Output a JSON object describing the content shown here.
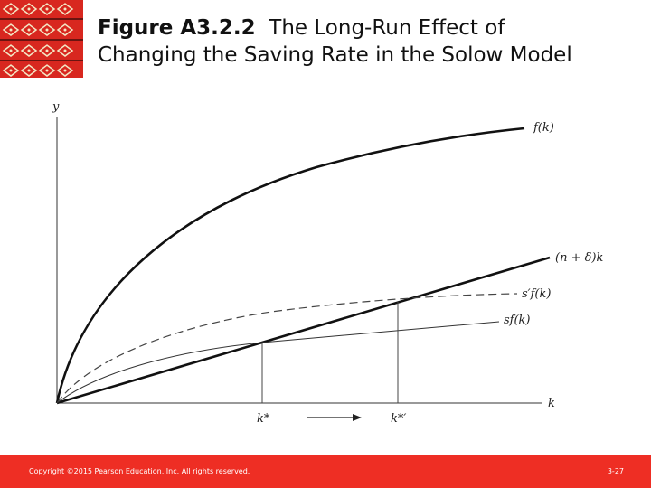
{
  "slide": {
    "title_bold": "Figure A3.2.2",
    "title_rest": "The Long-Run Effect of",
    "title_line2": "Changing the Saving Rate in the Solow Model",
    "copyright": "Copyright ©2015 Pearson Education, Inc. All rights reserved.",
    "page_number": "3-27"
  },
  "colors": {
    "footer": "#ee2e24",
    "logo_red": "#d8271f",
    "logo_pattern": "#f3e6c4"
  },
  "diagram": {
    "y_axis_label": "y",
    "x_axis_label": "k",
    "curves": {
      "production": "f(k)",
      "depreciation": "(n + δ)k",
      "new_saving": "s′f(k)",
      "old_saving": "sf(k)"
    },
    "steady_state_old": "k*",
    "steady_state_new": "k*′"
  }
}
